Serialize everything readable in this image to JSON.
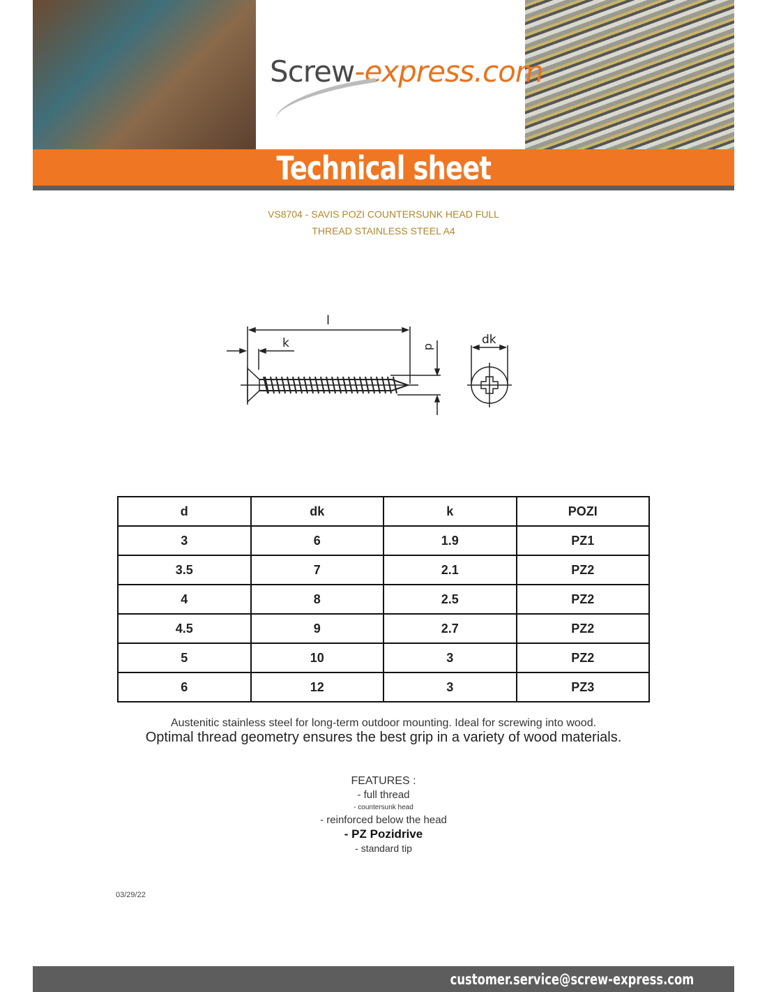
{
  "header": {
    "logo_main": "Screw",
    "logo_accent": "-express.com",
    "banner": "Technical sheet"
  },
  "product": {
    "title_line1": "VS8704 - SAVIS POZI COUNTERSUNK HEAD FULL",
    "title_line2": "THREAD STAINLESS STEEL A4"
  },
  "drawing": {
    "labels": {
      "l": "l",
      "k": "k",
      "d": "d",
      "dk": "dk"
    }
  },
  "table": {
    "headers": [
      "d",
      "dk",
      "k",
      "POZI"
    ],
    "rows": [
      [
        "3",
        "6",
        "1.9",
        "PZ1"
      ],
      [
        "3.5",
        "7",
        "2.1",
        "PZ2"
      ],
      [
        "4",
        "8",
        "2.5",
        "PZ2"
      ],
      [
        "4.5",
        "9",
        "2.7",
        "PZ2"
      ],
      [
        "5",
        "10",
        "3",
        "PZ2"
      ],
      [
        "6",
        "12",
        "3",
        "PZ3"
      ]
    ]
  },
  "description": {
    "line1": "Austenitic stainless steel for long-term outdoor mounting. Ideal for screwing into wood.",
    "line2": "Optimal thread geometry ensures the best grip in a variety of wood materials."
  },
  "features": {
    "title": "FEATURES :",
    "items": [
      "- full thread",
      "- countersunk head",
      "- reinforced below the head",
      "- PZ Pozidrive",
      "- standard tip"
    ]
  },
  "date": "03/29/22",
  "footer": {
    "email": "customer.service@screw-express.com"
  },
  "colors": {
    "orange": "#ef7623",
    "gray": "#5d5d5d",
    "title": "#b0862e"
  }
}
